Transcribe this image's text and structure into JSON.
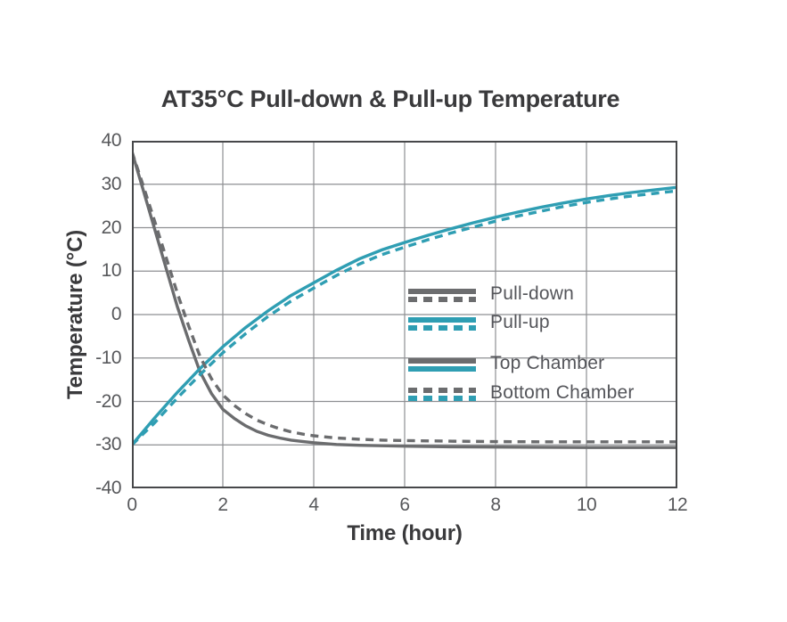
{
  "page": {
    "background_color": "#ffffff"
  },
  "chart_data": {
    "type": "line",
    "title": "AT35°C Pull-down & Pull-up Temperature",
    "xlabel": "Time (hour)",
    "ylabel": "Temperature (°C)",
    "xlim": [
      0,
      12
    ],
    "ylim": [
      -40,
      40
    ],
    "x_ticks": [
      0,
      2,
      4,
      6,
      8,
      10,
      12
    ],
    "y_ticks": [
      40,
      30,
      20,
      10,
      0,
      -10,
      -20,
      -30,
      -40
    ],
    "grid": true,
    "legend_position": "inside-right-middle",
    "colors": {
      "pull_down": "#6b6c6e",
      "pull_up": "#2f9eb3",
      "grid": "#8e8f92",
      "axis": "#47484a",
      "title_text": "#3a3a3c",
      "tick_text": "#57585b",
      "legend_text": "#54555a"
    },
    "series": [
      {
        "id": "pull-down-top-chamber",
        "name": "Pull-down (Top Chamber)",
        "style": "solid",
        "color": "#6b6c6e",
        "points": [
          [
            0,
            37.5
          ],
          [
            0.25,
            28.6
          ],
          [
            0.5,
            19.7
          ],
          [
            0.75,
            10.7
          ],
          [
            1,
            1.8
          ],
          [
            1.25,
            -6.0
          ],
          [
            1.5,
            -13.2
          ],
          [
            1.75,
            -18.2
          ],
          [
            2,
            -21.8
          ],
          [
            2.25,
            -23.9
          ],
          [
            2.5,
            -25.6
          ],
          [
            2.75,
            -26.9
          ],
          [
            3,
            -27.8
          ],
          [
            3.25,
            -28.4
          ],
          [
            3.5,
            -28.9
          ],
          [
            3.75,
            -29.2
          ],
          [
            4,
            -29.5
          ],
          [
            4.5,
            -29.9
          ],
          [
            5,
            -30.1
          ],
          [
            5.5,
            -30.2
          ],
          [
            6,
            -30.3
          ],
          [
            7,
            -30.45
          ],
          [
            8,
            -30.5
          ],
          [
            9,
            -30.55
          ],
          [
            10,
            -30.6
          ],
          [
            11,
            -30.6
          ],
          [
            12,
            -30.6
          ]
        ]
      },
      {
        "id": "pull-up-top-chamber",
        "name": "Pull-up (Top Chamber)",
        "style": "solid",
        "color": "#2f9eb3",
        "points": [
          [
            0,
            -30
          ],
          [
            0.5,
            -23.8
          ],
          [
            1,
            -17.9
          ],
          [
            1.5,
            -12.4
          ],
          [
            2,
            -7.4
          ],
          [
            2.5,
            -3.0
          ],
          [
            3,
            0.9
          ],
          [
            3.5,
            4.4
          ],
          [
            4,
            7.3
          ],
          [
            4.5,
            10.2
          ],
          [
            5,
            12.8
          ],
          [
            5.5,
            14.9
          ],
          [
            6,
            16.6
          ],
          [
            6.5,
            18.2
          ],
          [
            7,
            19.7
          ],
          [
            7.5,
            21.1
          ],
          [
            8,
            22.4
          ],
          [
            8.5,
            23.6
          ],
          [
            9,
            24.7
          ],
          [
            9.5,
            25.7
          ],
          [
            10,
            26.6
          ],
          [
            10.5,
            27.4
          ],
          [
            11,
            28.1
          ],
          [
            11.5,
            28.7
          ],
          [
            12,
            29.3
          ]
        ]
      },
      {
        "id": "pull-up-bottom-chamber",
        "name": "Pull-up (Bottom Chamber)",
        "style": "dashed",
        "color": "#2f9eb3",
        "points": [
          [
            0,
            -30
          ],
          [
            0.5,
            -24.9
          ],
          [
            1,
            -19.2
          ],
          [
            1.5,
            -13.8
          ],
          [
            2,
            -8.8
          ],
          [
            2.5,
            -4.4
          ],
          [
            3,
            -0.4
          ],
          [
            3.5,
            3.1
          ],
          [
            4,
            6.1
          ],
          [
            4.5,
            9.0
          ],
          [
            5,
            11.6
          ],
          [
            5.5,
            13.8
          ],
          [
            6,
            15.5
          ],
          [
            6.5,
            17.2
          ],
          [
            7,
            18.7
          ],
          [
            7.5,
            20.1
          ],
          [
            8,
            21.5
          ],
          [
            8.5,
            22.7
          ],
          [
            9,
            23.8
          ],
          [
            9.5,
            24.9
          ],
          [
            10,
            25.8
          ],
          [
            10.5,
            26.6
          ],
          [
            11,
            27.3
          ],
          [
            11.5,
            27.9
          ],
          [
            12,
            28.5
          ]
        ]
      },
      {
        "id": "pull-down-bottom-chamber",
        "name": "Pull-down (Bottom Chamber)",
        "style": "dashed",
        "color": "#6b6c6e",
        "points": [
          [
            0,
            37.5
          ],
          [
            0.25,
            29.6
          ],
          [
            0.5,
            21.5
          ],
          [
            0.75,
            13.2
          ],
          [
            1,
            4.9
          ],
          [
            1.25,
            -2.7
          ],
          [
            1.5,
            -9.7
          ],
          [
            1.75,
            -14.8
          ],
          [
            2,
            -18.5
          ],
          [
            2.25,
            -20.9
          ],
          [
            2.5,
            -22.8
          ],
          [
            2.75,
            -24.3
          ],
          [
            3,
            -25.4
          ],
          [
            3.25,
            -26.3
          ],
          [
            3.5,
            -27.0
          ],
          [
            3.75,
            -27.5
          ],
          [
            4,
            -27.9
          ],
          [
            4.5,
            -28.4
          ],
          [
            5,
            -28.7
          ],
          [
            5.5,
            -28.9
          ],
          [
            6,
            -29.0
          ],
          [
            7,
            -29.15
          ],
          [
            8,
            -29.25
          ],
          [
            9,
            -29.3
          ],
          [
            10,
            -29.3
          ],
          [
            11,
            -29.3
          ],
          [
            12,
            -29.3
          ]
        ]
      }
    ],
    "legend": {
      "entries": [
        {
          "label": "Pull-down",
          "bars": [
            {
              "style": "solid",
              "color": "#6b6c6e"
            },
            {
              "style": "dashed",
              "color": "#6b6c6e"
            }
          ]
        },
        {
          "label": "Pull-up",
          "bars": [
            {
              "style": "solid",
              "color": "#2f9eb3"
            },
            {
              "style": "dashed",
              "color": "#2f9eb3"
            }
          ]
        },
        {
          "label": "Top Chamber",
          "bars": [
            {
              "style": "solid",
              "color": "#6b6c6e"
            },
            {
              "style": "solid",
              "color": "#2f9eb3"
            }
          ]
        },
        {
          "label": "Bottom Chamber",
          "bars": [
            {
              "style": "dashed",
              "color": "#6b6c6e"
            },
            {
              "style": "dashed",
              "color": "#2f9eb3"
            }
          ]
        }
      ]
    }
  }
}
